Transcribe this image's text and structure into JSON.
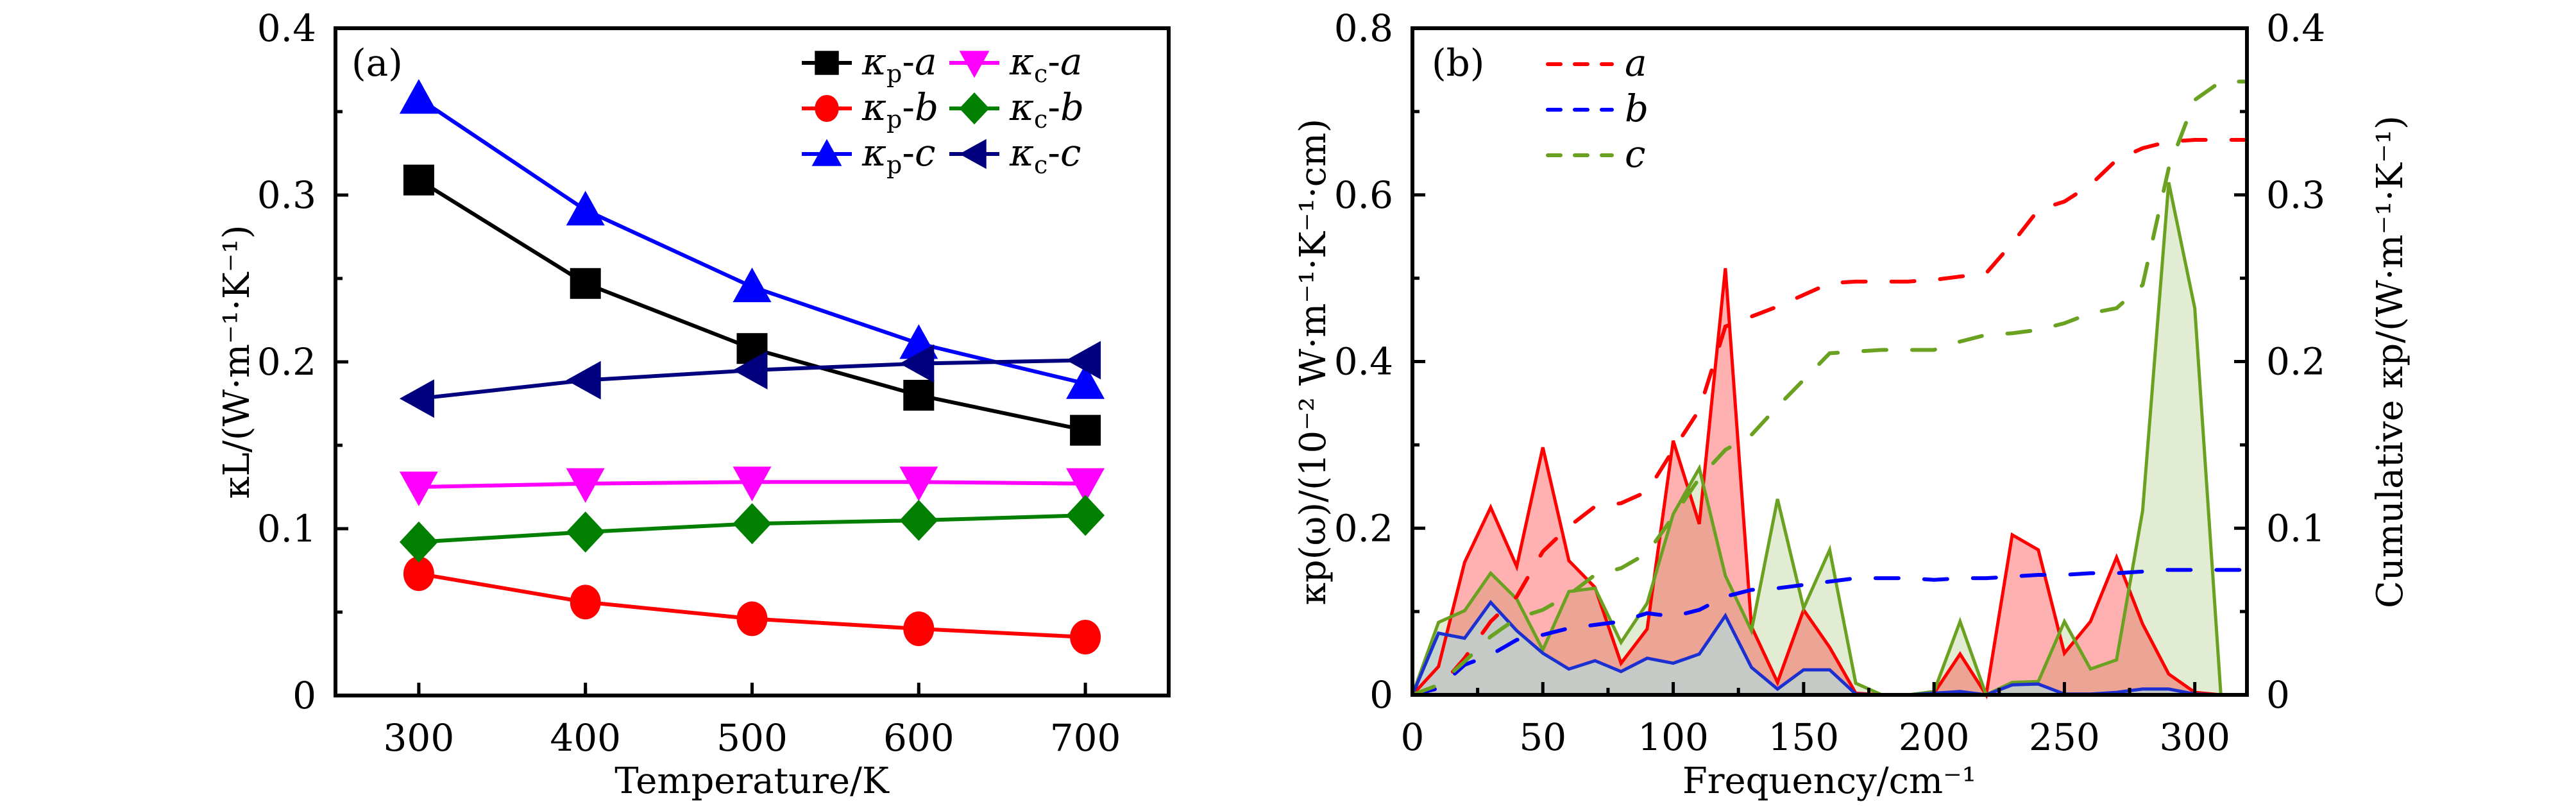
{
  "figure": {
    "panels": [
      "(a)",
      "(b)"
    ]
  },
  "chart_data": [
    {
      "type": "line",
      "panel_label": "(a)",
      "title": "",
      "xlabel": "Temperature/K",
      "ylabel": "κL/(W·m⁻¹·K⁻¹)",
      "xlim": [
        250,
        750
      ],
      "ylim": [
        0,
        0.4
      ],
      "xticks": [
        300,
        400,
        500,
        600,
        700
      ],
      "xtick_labels": [
        "300",
        "400",
        "500",
        "600",
        "700"
      ],
      "yticks": [
        0,
        0.1,
        0.2,
        0.3,
        0.4
      ],
      "ytick_labels": [
        "0",
        "0.1",
        "0.2",
        "0.3",
        "0.4"
      ],
      "grid": false,
      "legend_position": "top-right",
      "x": [
        300,
        400,
        500,
        600,
        700
      ],
      "series": [
        {
          "name": "κp-a",
          "label_main": "κ",
          "label_sub": "p",
          "label_axis": "a",
          "color": "#000000",
          "marker": "square",
          "values": [
            0.309,
            0.247,
            0.208,
            0.18,
            0.159
          ]
        },
        {
          "name": "κp-b",
          "label_main": "κ",
          "label_sub": "p",
          "label_axis": "b",
          "color": "#ff0000",
          "marker": "circle",
          "values": [
            0.073,
            0.056,
            0.046,
            0.04,
            0.035
          ]
        },
        {
          "name": "κp-c",
          "label_main": "κ",
          "label_sub": "p",
          "label_axis": "c",
          "color": "#0000ff",
          "marker": "triangle-up",
          "values": [
            0.358,
            0.291,
            0.245,
            0.211,
            0.187
          ]
        },
        {
          "name": "κc-a",
          "label_main": "κ",
          "label_sub": "c",
          "label_axis": "a",
          "color": "#ff00ff",
          "marker": "triangle-down",
          "values": [
            0.125,
            0.127,
            0.128,
            0.128,
            0.127
          ]
        },
        {
          "name": "κc-b",
          "label_main": "κ",
          "label_sub": "c",
          "label_axis": "b",
          "color": "#007f00",
          "marker": "diamond",
          "values": [
            0.092,
            0.098,
            0.103,
            0.105,
            0.108
          ]
        },
        {
          "name": "κc-c",
          "label_main": "κ",
          "label_sub": "c",
          "label_axis": "c",
          "color": "#00007f",
          "marker": "triangle-left",
          "values": [
            0.178,
            0.189,
            0.195,
            0.199,
            0.201
          ]
        }
      ]
    },
    {
      "type": "area",
      "panel_label": "(b)",
      "title": "",
      "xlabel": "Frequency/cm⁻¹",
      "ylabel": "κp(ω)/(10⁻² W·m⁻¹·K⁻¹·cm)",
      "y2label": "Cumulative κp/(W·m⁻¹·K⁻¹)",
      "xlim": [
        0,
        320
      ],
      "ylim": [
        0,
        0.8
      ],
      "y2lim": [
        0,
        0.4
      ],
      "xticks": [
        0,
        50,
        100,
        150,
        200,
        250,
        300
      ],
      "xtick_labels": [
        "0",
        "50",
        "100",
        "150",
        "200",
        "250",
        "300"
      ],
      "yticks": [
        0,
        0.2,
        0.4,
        0.6,
        0.8
      ],
      "ytick_labels": [
        "0",
        "0.2",
        "0.4",
        "0.6",
        "0.8"
      ],
      "y2ticks": [
        0,
        0.1,
        0.2,
        0.3,
        0.4
      ],
      "y2tick_labels": [
        "0",
        "0.1",
        "0.2",
        "0.3",
        "0.4"
      ],
      "grid": false,
      "legend_position": "top-left",
      "x": [
        0,
        10,
        20,
        30,
        40,
        50,
        60,
        70,
        80,
        90,
        100,
        110,
        120,
        130,
        140,
        150,
        160,
        170,
        180,
        190,
        200,
        210,
        220,
        230,
        240,
        250,
        260,
        270,
        280,
        290,
        300,
        310,
        320
      ],
      "spectral_series": [
        {
          "name": "a",
          "axis": "left",
          "color": "#ff0000",
          "fill": "rgba(255,40,40,0.36)",
          "values": [
            0,
            0.034,
            0.159,
            0.225,
            0.154,
            0.297,
            0.161,
            0.129,
            0.038,
            0.079,
            0.305,
            0.205,
            0.512,
            0.082,
            0.015,
            0.102,
            0.057,
            0.002,
            0,
            0,
            0.002,
            0.049,
            0,
            0.192,
            0.174,
            0.05,
            0.088,
            0.165,
            0.085,
            0.025,
            0.003,
            0,
            0
          ]
        },
        {
          "name": "c",
          "axis": "left",
          "color": "#6aa121",
          "fill": "rgba(120,170,50,0.22)",
          "values": [
            0,
            0.087,
            0.101,
            0.146,
            0.115,
            0.054,
            0.124,
            0.128,
            0.063,
            0.11,
            0.217,
            0.272,
            0.143,
            0.077,
            0.235,
            0.104,
            0.174,
            0.014,
            0,
            0,
            0.004,
            0.088,
            0,
            0.015,
            0.016,
            0.088,
            0.031,
            0.042,
            0.221,
            0.615,
            0.464,
            0,
            0
          ]
        },
        {
          "name": "b",
          "axis": "left",
          "color": "#1c2fd0",
          "fill": "rgba(190,208,208,0.85)",
          "values": [
            0,
            0.074,
            0.068,
            0.111,
            0.077,
            0.05,
            0.031,
            0.041,
            0.028,
            0.044,
            0.038,
            0.049,
            0.095,
            0.033,
            0.007,
            0.03,
            0.03,
            0.001,
            0,
            0,
            0.002,
            0.004,
            0,
            0.012,
            0.013,
            0.001,
            0.001,
            0.003,
            0.007,
            0.007,
            0.001,
            0,
            0
          ]
        }
      ],
      "cumulative_series": [
        {
          "name": "a",
          "axis": "right",
          "color": "#ff0000",
          "style": "dashed",
          "values": [
            0,
            0.004,
            0.022,
            0.044,
            0.059,
            0.086,
            0.101,
            0.113,
            0.115,
            0.122,
            0.147,
            0.171,
            0.221,
            0.227,
            0.233,
            0.24,
            0.247,
            0.248,
            0.248,
            0.248,
            0.249,
            0.251,
            0.253,
            0.271,
            0.291,
            0.296,
            0.306,
            0.321,
            0.328,
            0.332,
            0.333,
            0.333,
            0.333
          ]
        },
        {
          "name": "b",
          "axis": "right",
          "color": "#0000ff",
          "style": "dashed",
          "values": [
            0,
            0.004,
            0.018,
            0.024,
            0.033,
            0.036,
            0.04,
            0.042,
            0.044,
            0.049,
            0.047,
            0.051,
            0.059,
            0.063,
            0.064,
            0.066,
            0.068,
            0.07,
            0.07,
            0.07,
            0.069,
            0.07,
            0.07,
            0.071,
            0.072,
            0.072,
            0.073,
            0.073,
            0.074,
            0.075,
            0.075,
            0.075,
            0.075
          ]
        },
        {
          "name": "c",
          "axis": "right",
          "color": "#6aa121",
          "style": "dashed",
          "values": [
            0,
            0.006,
            0.02,
            0.035,
            0.046,
            0.051,
            0.06,
            0.072,
            0.076,
            0.085,
            0.107,
            0.13,
            0.147,
            0.156,
            0.173,
            0.189,
            0.205,
            0.206,
            0.207,
            0.207,
            0.207,
            0.212,
            0.216,
            0.217,
            0.219,
            0.223,
            0.229,
            0.232,
            0.246,
            0.316,
            0.357,
            0.368,
            0.368
          ]
        }
      ],
      "legend": [
        {
          "label": "a",
          "color": "#ff0000",
          "style": "dashed"
        },
        {
          "label": "b",
          "color": "#0000ff",
          "style": "dashed"
        },
        {
          "label": "c",
          "color": "#6aa121",
          "style": "dashed"
        }
      ]
    }
  ]
}
